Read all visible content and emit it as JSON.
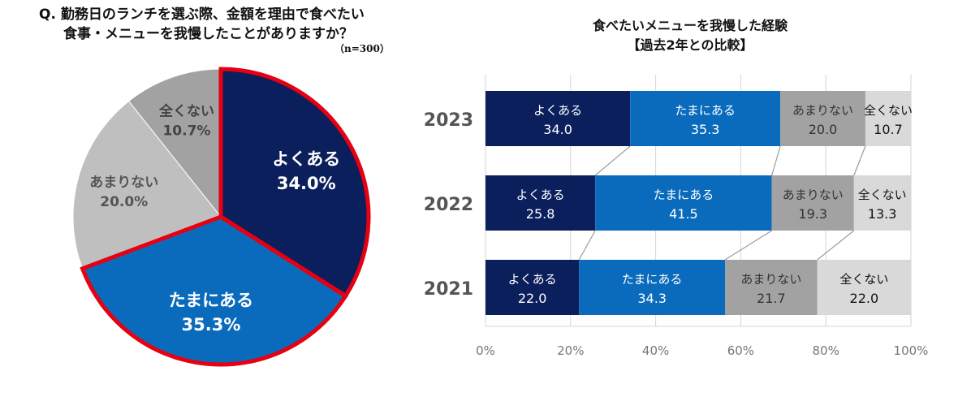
{
  "chart_data": [
    {
      "type": "pie",
      "title_line1": "Q. 勤務日のランチを選ぶ際、金額を理由で食べたい",
      "title_line2": "食事・メニューを我慢したことがありますか？",
      "note": "（n=300）",
      "slices": [
        {
          "label": "よくある",
          "value": 34.0,
          "display": "34.0%",
          "color": "#0b1f5c",
          "text_color": "#ffffff",
          "highlight": true
        },
        {
          "label": "たまにある",
          "value": 35.3,
          "display": "35.3%",
          "color": "#0a6bbd",
          "text_color": "#ffffff",
          "highlight": true
        },
        {
          "label": "あまりない",
          "value": 20.0,
          "display": "20.0%",
          "color": "#bfbfbf",
          "text_color": "#555555",
          "highlight": false
        },
        {
          "label": "全くない",
          "value": 10.7,
          "display": "10.7%",
          "color": "#a2a2a2",
          "text_color": "#444444",
          "highlight": false
        }
      ],
      "highlight_color": "#e60012"
    },
    {
      "type": "stacked-bar",
      "title_line1": "食べたいメニューを我慢した経験",
      "title_line2": "【過去2年との比較】",
      "categories": [
        "2023",
        "2022",
        "2021"
      ],
      "series": [
        {
          "name": "よくある",
          "values": [
            34.0,
            25.8,
            22.0
          ],
          "display": [
            "34.0",
            "25.8",
            "22.0"
          ],
          "color": "#0b1f5c",
          "text_color": "#ffffff"
        },
        {
          "name": "たまにある",
          "values": [
            35.3,
            41.5,
            34.3
          ],
          "display": [
            "35.3",
            "41.5",
            "34.3"
          ],
          "color": "#0a6bbd",
          "text_color": "#ffffff"
        },
        {
          "name": "あまりない",
          "values": [
            20.0,
            19.3,
            21.7
          ],
          "display": [
            "20.0",
            "19.3",
            "21.7"
          ],
          "color": "#a2a2a2",
          "text_color": "#333333"
        },
        {
          "name": "全くない",
          "values": [
            10.7,
            13.3,
            22.0
          ],
          "display": [
            "10.7",
            "13.3",
            "22.0"
          ],
          "color": "#d9d9d9",
          "text_color": "#111111"
        }
      ],
      "xlim": [
        0,
        100
      ],
      "xticks": [
        "0%",
        "20%",
        "40%",
        "60%",
        "80%",
        "100%"
      ],
      "grid": true
    }
  ]
}
